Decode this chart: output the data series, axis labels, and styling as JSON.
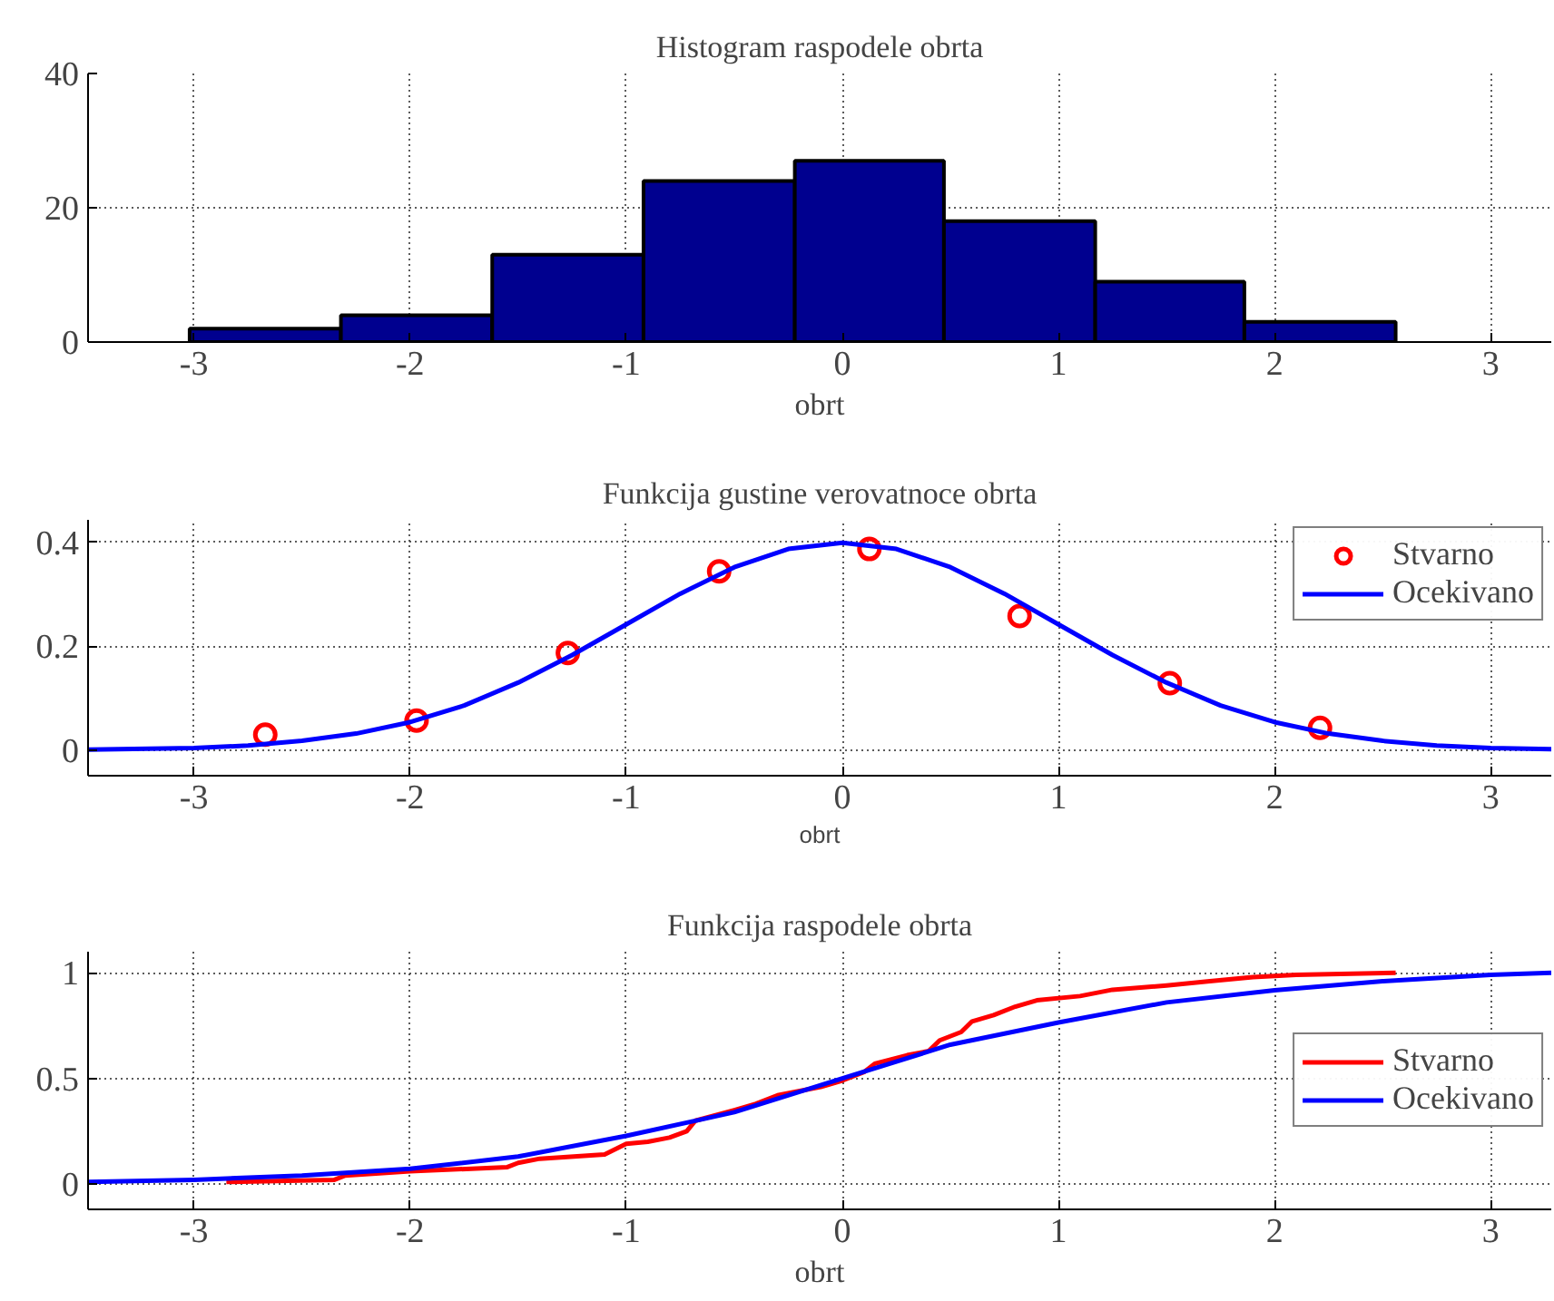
{
  "chart_data": [
    {
      "type": "histogram",
      "title": "Histogram raspodele obrta",
      "xlabel": "obrt",
      "bins": [
        -3.02,
        -2.32,
        -1.62,
        -0.92,
        -0.22,
        0.47,
        1.17,
        1.86,
        2.56
      ],
      "values": [
        2,
        4,
        13,
        24,
        27,
        18,
        9,
        3
      ],
      "color": "#00008f",
      "xlim": [
        -3.49,
        3.28
      ],
      "xticks": [
        -3,
        -2,
        -1,
        0,
        1,
        2,
        3
      ],
      "ylim": [
        0,
        40
      ],
      "yticks": [
        0,
        20,
        40
      ],
      "grid": true
    },
    {
      "type": "line",
      "title": "Funkcija gustine verovatnoce obrta",
      "xlabel": "obrt",
      "xlim": [
        -3.49,
        3.28
      ],
      "xticks": [
        -3,
        -2,
        -1,
        0,
        1,
        2,
        3
      ],
      "ylim": [
        -0.049,
        0.443
      ],
      "yticks": [
        0,
        0.2,
        0.4
      ],
      "grid": true,
      "legend": "top right",
      "series": [
        {
          "name": "Stvarno",
          "type": "scatter",
          "marker": "circle",
          "color": "#ff0000",
          "x": [
            -2.67,
            -1.97,
            -1.27,
            -0.57,
            0.125,
            0.82,
            1.515,
            2.21
          ],
          "values": [
            0.03,
            0.057,
            0.187,
            0.344,
            0.387,
            0.258,
            0.129,
            0.043
          ]
        },
        {
          "name": "Ocekivano",
          "type": "line",
          "color": "#0000ff",
          "x": [
            -3.49,
            -3,
            -2.75,
            -2.5,
            -2.25,
            -2,
            -1.75,
            -1.5,
            -1.25,
            -1,
            -0.75,
            -0.5,
            -0.25,
            0,
            0.25,
            0.5,
            0.75,
            1,
            1.25,
            1.5,
            1.75,
            2,
            2.25,
            2.5,
            2.75,
            3,
            3.28
          ],
          "values": [
            0.001,
            0.004,
            0.009,
            0.018,
            0.032,
            0.054,
            0.086,
            0.13,
            0.183,
            0.242,
            0.301,
            0.352,
            0.387,
            0.399,
            0.387,
            0.352,
            0.301,
            0.242,
            0.183,
            0.13,
            0.086,
            0.054,
            0.032,
            0.018,
            0.009,
            0.004,
            0.002
          ]
        }
      ]
    },
    {
      "type": "line",
      "title": "Funkcija raspodele obrta",
      "xlabel": "obrt",
      "xlim": [
        -3.49,
        3.28
      ],
      "xticks": [
        -3,
        -2,
        -1,
        0,
        1,
        2,
        3
      ],
      "ylim": [
        -0.12,
        1.1
      ],
      "yticks": [
        0,
        0.5,
        1
      ],
      "grid": true,
      "legend": "right",
      "series": [
        {
          "name": "Stvarno",
          "type": "line",
          "color": "#ff0000",
          "x": [
            -2.85,
            -2.35,
            -2.3,
            -2.0,
            -1.55,
            -1.5,
            -1.4,
            -1.1,
            -1.0,
            -0.9,
            -0.8,
            -0.72,
            -0.68,
            -0.5,
            -0.4,
            -0.3,
            -0.1,
            0.0,
            0.1,
            0.15,
            0.3,
            0.4,
            0.45,
            0.55,
            0.6,
            0.7,
            0.8,
            0.9,
            1.1,
            1.25,
            1.5,
            1.7,
            1.9,
            2.1,
            2.56
          ],
          "values": [
            0.01,
            0.02,
            0.04,
            0.06,
            0.08,
            0.1,
            0.12,
            0.14,
            0.19,
            0.2,
            0.22,
            0.25,
            0.3,
            0.35,
            0.38,
            0.42,
            0.46,
            0.49,
            0.53,
            0.57,
            0.61,
            0.63,
            0.68,
            0.72,
            0.77,
            0.8,
            0.84,
            0.87,
            0.89,
            0.92,
            0.94,
            0.96,
            0.98,
            0.99,
            1.0
          ]
        },
        {
          "name": "Ocekivano",
          "type": "line",
          "color": "#0000ff",
          "x": [
            -3.49,
            -3,
            -2.5,
            -2,
            -1.5,
            -1,
            -0.5,
            0,
            0.5,
            1,
            1.5,
            2,
            2.5,
            3,
            3.28
          ],
          "values": [
            0.01,
            0.02,
            0.04,
            0.072,
            0.13,
            0.228,
            0.34,
            0.5,
            0.66,
            0.765,
            0.86,
            0.917,
            0.96,
            0.99,
            1.0
          ]
        }
      ]
    }
  ]
}
